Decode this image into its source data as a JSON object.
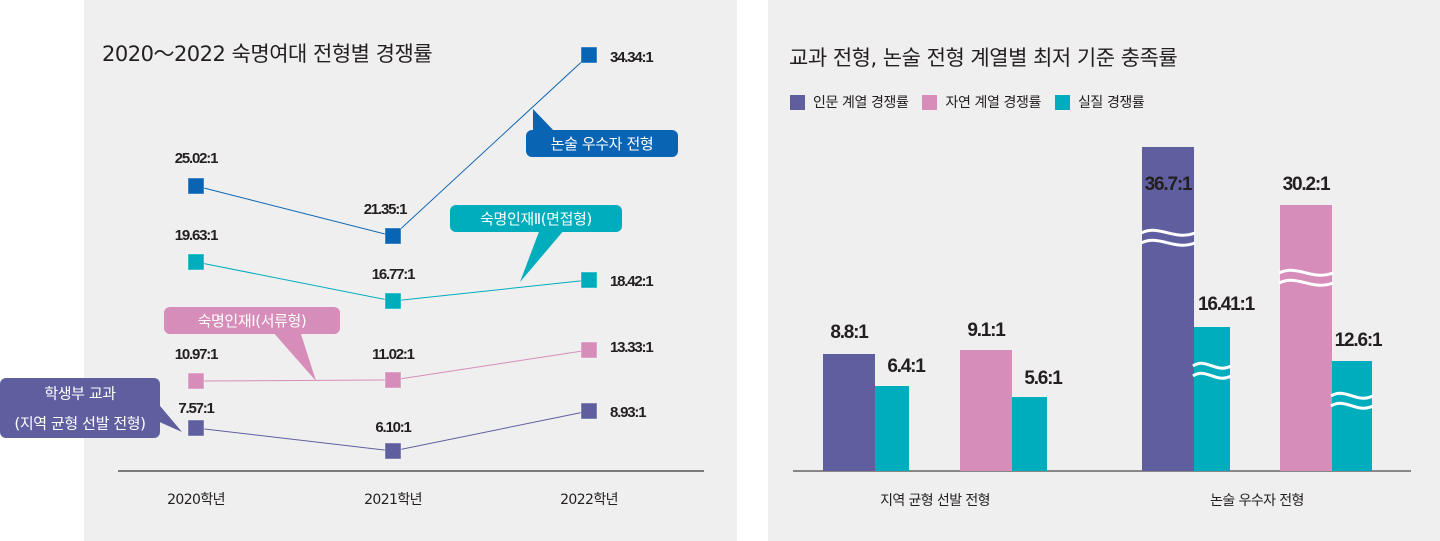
{
  "chart_data": [
    {
      "type": "line",
      "title": "2020～2022 숙명여대 전형별 경쟁률",
      "xlabel": "",
      "ylabel": "",
      "categories": [
        "2020학년",
        "2021학년",
        "2022학년"
      ],
      "ylim": [
        0,
        36
      ],
      "grid": false,
      "series": [
        {
          "name": "논술 우수자 전형",
          "values": [
            25.02,
            21.35,
            34.34
          ],
          "labels": [
            "25.02:1",
            "21.35:1",
            "34.34:1"
          ],
          "color": "#0a64b4"
        },
        {
          "name": "숙명인재 II (면접형)",
          "values": [
            19.63,
            16.77,
            18.42
          ],
          "labels": [
            "19.63:1",
            "16.77:1",
            "18.42:1"
          ],
          "color": "#00adbd"
        },
        {
          "name": "숙명인재 I (서류형)",
          "values": [
            10.97,
            11.02,
            13.33
          ],
          "labels": [
            "10.97:1",
            "11.02:1",
            "13.33:1"
          ],
          "color": "#d68db9"
        },
        {
          "name": "학생부 교과 (지역 균형 선발 전형)",
          "values": [
            7.57,
            6.1,
            8.93
          ],
          "labels": [
            "7.57:1",
            "6.10:1",
            "8.93:1"
          ],
          "color": "#5f5fa0"
        }
      ],
      "callouts": [
        {
          "series": 0,
          "text": "논술 우수자 전형"
        },
        {
          "series": 1,
          "text": "숙명인재Ⅱ(면접형)"
        },
        {
          "series": 2,
          "text": "숙명인재Ⅰ(서류형)"
        },
        {
          "series": 3,
          "text_lines": [
            "학생부 교과",
            "(지역 균형 선발 전형)"
          ]
        }
      ]
    },
    {
      "type": "bar",
      "title": "교과 전형, 논술 전형 계열별 최저 기준 충족률",
      "xlabel": "",
      "ylabel": "",
      "axis_break": true,
      "legend": {
        "placement": "top-left",
        "entries": [
          {
            "name": "인문 계열 경쟁률",
            "color": "#5f5fa0"
          },
          {
            "name": "자연 계열 경쟁률",
            "color": "#d68db9"
          },
          {
            "name": "실질 경쟁률",
            "color": "#00adbd"
          }
        ]
      },
      "groups": [
        {
          "category": "지역 균형 선발 전형",
          "bars": [
            {
              "series": "인문 계열 경쟁률",
              "value": 8.8,
              "label": "8.8:1"
            },
            {
              "series": "실질 경쟁률",
              "value": 6.4,
              "label": "6.4:1"
            },
            {
              "series": "자연 계열 경쟁률",
              "value": 9.1,
              "label": "9.1:1"
            },
            {
              "series": "실질 경쟁률",
              "value": 5.6,
              "label": "5.6:1"
            }
          ]
        },
        {
          "category": "논술 우수자 전형",
          "bars": [
            {
              "series": "인문 계열 경쟁률",
              "value": 36.7,
              "label": "36.7:1",
              "broken": true
            },
            {
              "series": "실질 경쟁률",
              "value": 16.41,
              "label": "16.41:1",
              "broken": true
            },
            {
              "series": "자연 계열 경쟁률",
              "value": 30.2,
              "label": "30.2:1",
              "broken": true
            },
            {
              "series": "실질 경쟁률",
              "value": 12.6,
              "label": "12.6:1",
              "broken": true
            }
          ]
        }
      ]
    }
  ]
}
